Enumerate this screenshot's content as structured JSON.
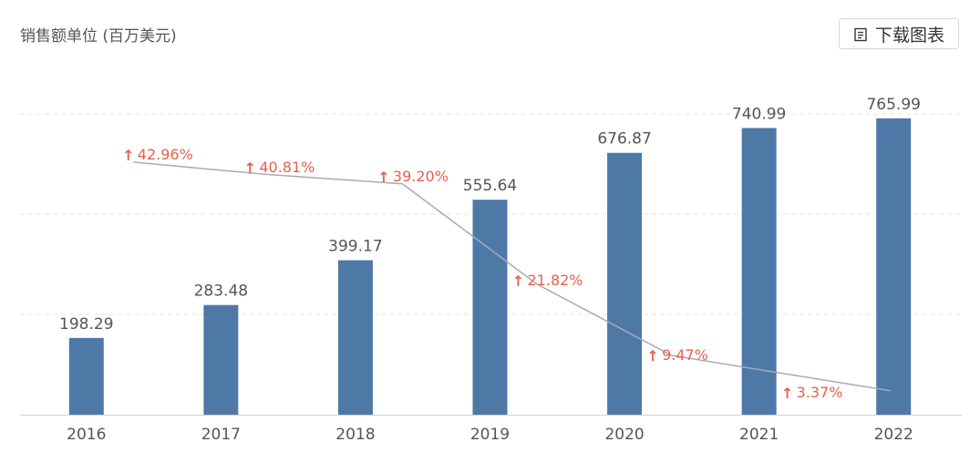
{
  "unit_label": "销售额单位 (百万美元)",
  "download_button": {
    "label": "下载图表",
    "icon": "document-icon"
  },
  "colors": {
    "bar": "#4e79a7",
    "line": "#a9a9b8",
    "growth": "#e8604c",
    "grid": "#e5e5e5",
    "axis": "#d0d0d0"
  },
  "chart_data": {
    "type": "bar",
    "categories": [
      "2016",
      "2017",
      "2018",
      "2019",
      "2020",
      "2021",
      "2022"
    ],
    "values": [
      198.29,
      283.48,
      399.17,
      555.64,
      676.87,
      740.99,
      765.99
    ],
    "value_labels": [
      "198.29",
      "283.48",
      "399.17",
      "555.64",
      "676.87",
      "740.99",
      "765.99"
    ],
    "growth": {
      "type": "line",
      "categories": [
        "2017",
        "2018",
        "2019",
        "2020",
        "2021",
        "2022"
      ],
      "values": [
        42.96,
        40.81,
        39.2,
        21.82,
        9.47,
        3.37
      ],
      "labels": [
        "42.96%",
        "40.81%",
        "39.20%",
        "21.82%",
        "9.47%",
        "3.37%"
      ],
      "arrow": "↑"
    },
    "ylim": [
      0,
      900
    ],
    "grid": true,
    "title": "",
    "xlabel": "",
    "ylabel": ""
  }
}
